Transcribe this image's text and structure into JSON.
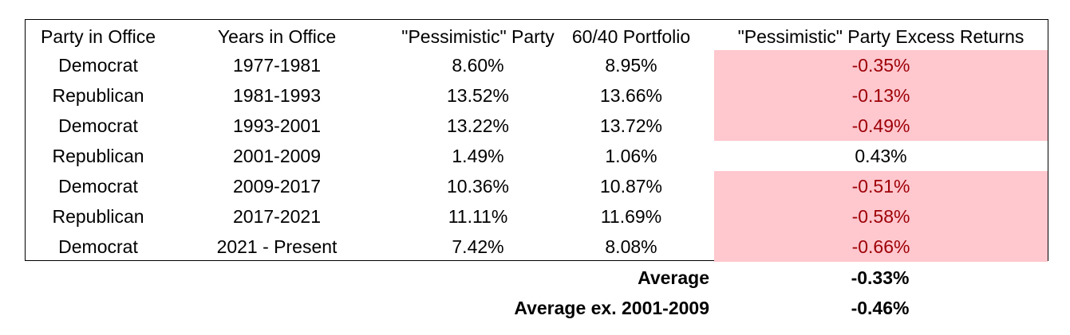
{
  "chart_data": {
    "type": "table",
    "columns": [
      "Party in Office",
      "Years in Office",
      "\"Pessimistic\" Party",
      "60/40 Portfolio",
      "\"Pessimistic\" Party Excess Returns"
    ],
    "rows": [
      [
        "Democrat",
        "1977-1981",
        "8.60%",
        "8.95%",
        "-0.35%"
      ],
      [
        "Republican",
        "1981-1993",
        "13.52%",
        "13.66%",
        "-0.13%"
      ],
      [
        "Democrat",
        "1993-2001",
        "13.22%",
        "13.72%",
        "-0.49%"
      ],
      [
        "Republican",
        "2001-2009",
        "1.49%",
        "1.06%",
        "0.43%"
      ],
      [
        "Democrat",
        "2009-2017",
        "10.36%",
        "10.87%",
        "-0.51%"
      ],
      [
        "Republican",
        "2017-2021",
        "11.11%",
        "11.69%",
        "-0.58%"
      ],
      [
        "Democrat",
        "2021 - Present",
        "7.42%",
        "8.08%",
        "-0.66%"
      ]
    ],
    "summary": [
      {
        "label": "Average",
        "value": "-0.33%"
      },
      {
        "label": "Average ex. 2001-2009",
        "value": "-0.46%"
      }
    ],
    "negative_fill": "#ffc7ce",
    "negative_text": "#9c0006"
  }
}
